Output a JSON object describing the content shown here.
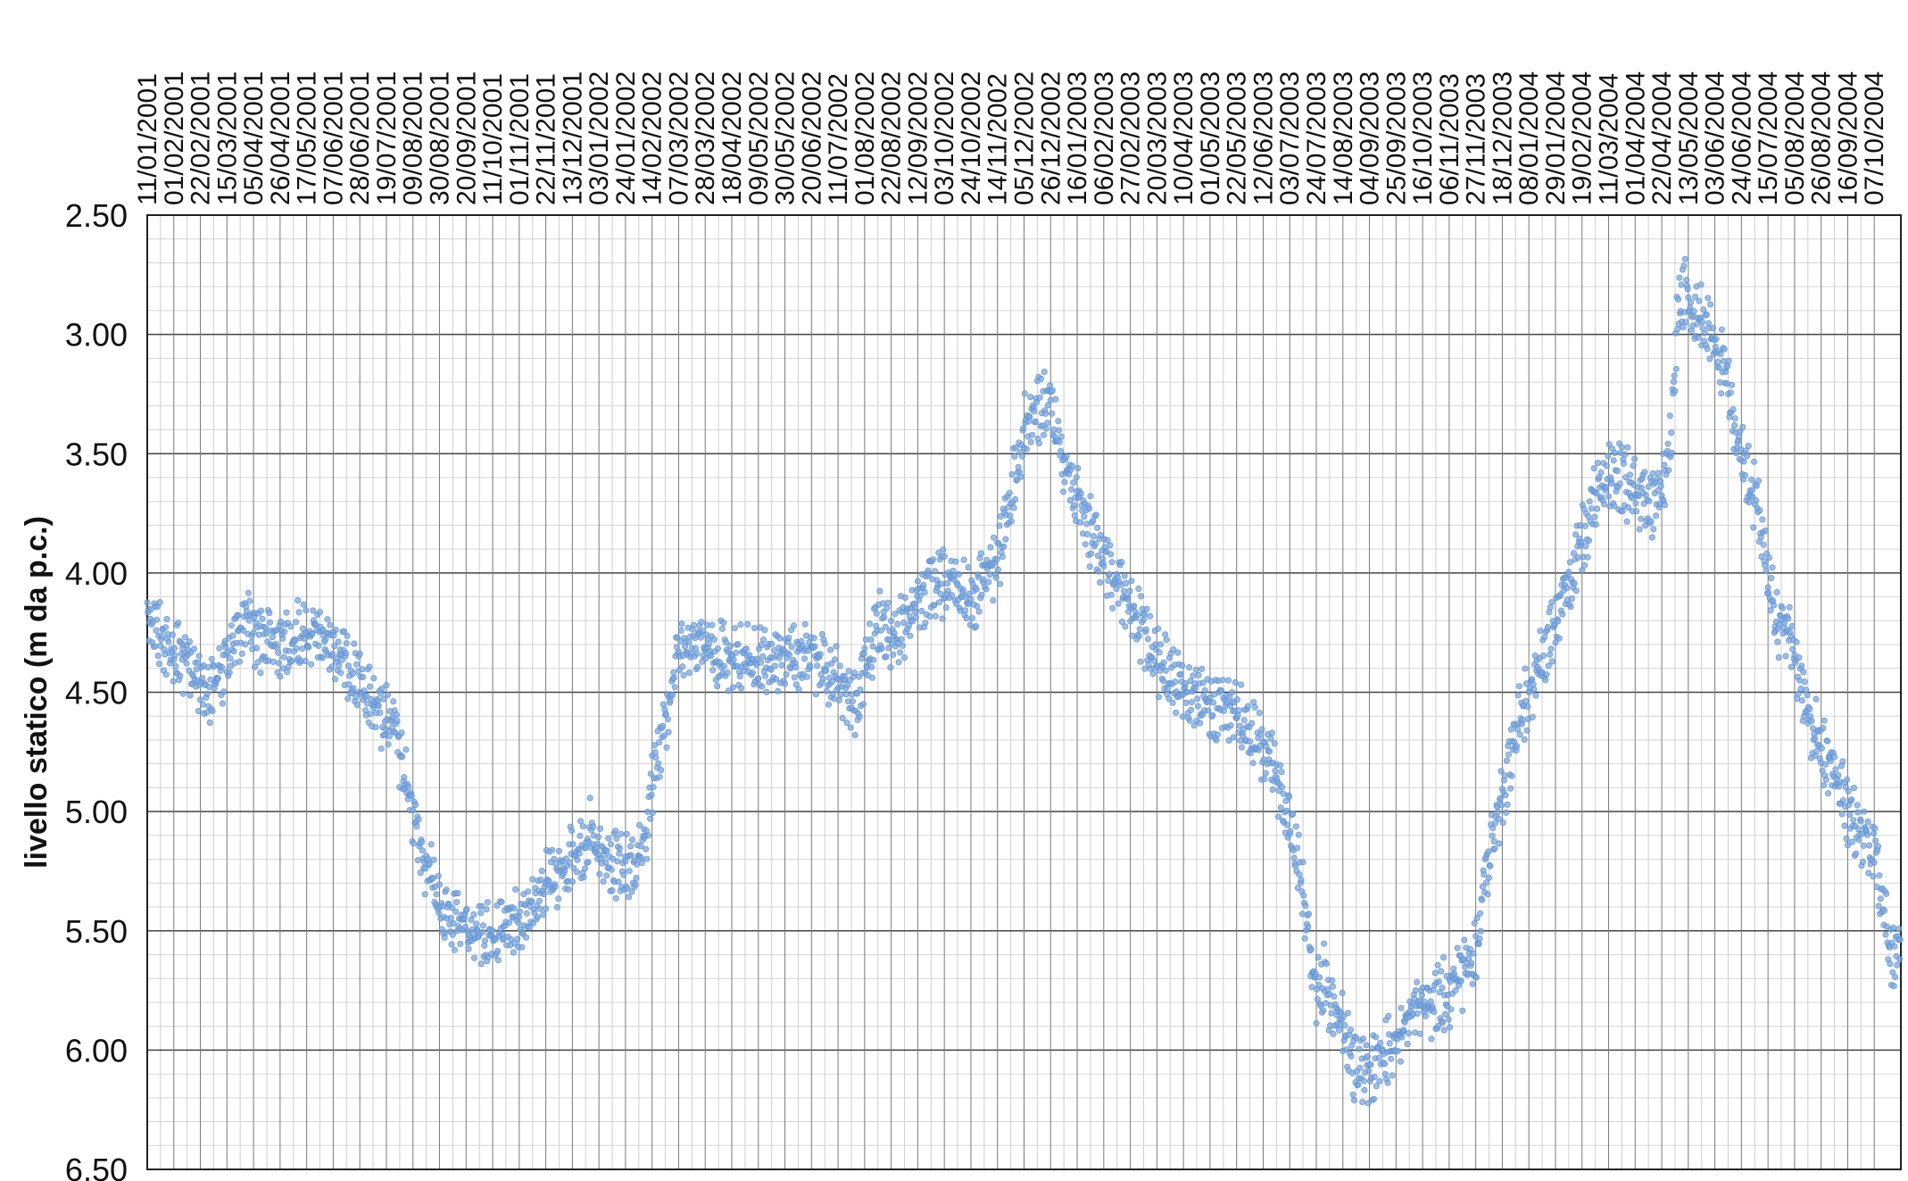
{
  "chart_data": {
    "type": "scatter",
    "title": "",
    "xlabel": "",
    "ylabel": "livello statico (m da p.c.)",
    "y_inverted": true,
    "ylim": [
      2.5,
      6.5
    ],
    "yticks": [
      "2.50",
      "3.00",
      "3.50",
      "4.00",
      "4.50",
      "5.00",
      "5.50",
      "6.00",
      "6.50"
    ],
    "grid": true,
    "legend": "none",
    "marker_color": "#7ba7de",
    "x_start": "11/01/2001",
    "x_end": "28/10/2004",
    "x_tick_labels": [
      "11/01/2001",
      "01/02/2001",
      "22/02/2001",
      "15/03/2001",
      "05/04/2001",
      "26/04/2001",
      "17/05/2001",
      "07/06/2001",
      "28/06/2001",
      "19/07/2001",
      "09/08/2001",
      "30/08/2001",
      "20/09/2001",
      "11/10/2001",
      "01/11/2001",
      "22/11/2001",
      "13/12/2001",
      "03/01/2002",
      "24/01/2002",
      "14/02/2002",
      "07/03/2002",
      "28/03/2002",
      "18/04/2002",
      "09/05/2002",
      "30/05/2002",
      "20/06/2002",
      "11/07/2002",
      "01/08/2002",
      "22/08/2002",
      "12/09/2002",
      "03/10/2002",
      "24/10/2002",
      "14/11/2002",
      "05/12/2002",
      "26/12/2002",
      "16/01/2003",
      "06/02/2003",
      "27/02/2003",
      "20/03/2003",
      "10/04/2003",
      "01/05/2003",
      "22/05/2003",
      "12/06/2003",
      "03/07/2003",
      "24/07/2003",
      "14/08/2003",
      "04/09/2003",
      "25/09/2003",
      "16/10/2003",
      "06/11/2003",
      "27/11/2003",
      "18/12/2003",
      "08/01/2004",
      "29/01/2004",
      "19/02/2004",
      "11/03/2004",
      "01/04/2004",
      "22/04/2004",
      "13/05/2004",
      "03/06/2004",
      "24/06/2004",
      "15/07/2004",
      "05/08/2004",
      "26/08/2004",
      "16/09/2004",
      "07/10/2004"
    ],
    "series": [
      {
        "name": "",
        "trend": [
          [
            "11/01/2001",
            4.15
          ],
          [
            "25/01/2001",
            4.3
          ],
          [
            "15/02/2001",
            4.4
          ],
          [
            "01/03/2001",
            4.5
          ],
          [
            "15/03/2001",
            4.35
          ],
          [
            "29/03/2001",
            4.2
          ],
          [
            "05/04/2001",
            4.25
          ],
          [
            "26/04/2001",
            4.3
          ],
          [
            "17/05/2001",
            4.25
          ],
          [
            "07/06/2001",
            4.3
          ],
          [
            "28/06/2001",
            4.45
          ],
          [
            "12/07/2001",
            4.6
          ],
          [
            "26/07/2001",
            4.65
          ],
          [
            "02/08/2001",
            4.85
          ],
          [
            "09/08/2001",
            5.0
          ],
          [
            "16/08/2001",
            5.15
          ],
          [
            "30/08/2001",
            5.4
          ],
          [
            "20/09/2001",
            5.5
          ],
          [
            "11/10/2001",
            5.52
          ],
          [
            "01/11/2001",
            5.45
          ],
          [
            "22/11/2001",
            5.3
          ],
          [
            "13/12/2001",
            5.2
          ],
          [
            "27/12/2001",
            5.1
          ],
          [
            "03/01/2002",
            5.2
          ],
          [
            "24/01/2002",
            5.25
          ],
          [
            "07/02/2002",
            5.2
          ],
          [
            "14/02/2002",
            4.9
          ],
          [
            "21/02/2002",
            4.7
          ],
          [
            "28/02/2002",
            4.55
          ],
          [
            "07/03/2002",
            4.3
          ],
          [
            "28/03/2002",
            4.32
          ],
          [
            "18/04/2002",
            4.35
          ],
          [
            "09/05/2002",
            4.38
          ],
          [
            "30/05/2002",
            4.35
          ],
          [
            "20/06/2002",
            4.35
          ],
          [
            "11/07/2002",
            4.45
          ],
          [
            "25/07/2002",
            4.55
          ],
          [
            "01/08/2002",
            4.4
          ],
          [
            "15/08/2002",
            4.2
          ],
          [
            "22/08/2002",
            4.3
          ],
          [
            "29/08/2002",
            4.25
          ],
          [
            "12/09/2002",
            4.1
          ],
          [
            "03/10/2002",
            4.05
          ],
          [
            "24/10/2002",
            4.1
          ],
          [
            "07/11/2002",
            4.0
          ],
          [
            "14/11/2002",
            3.95
          ],
          [
            "28/11/2002",
            3.6
          ],
          [
            "05/12/2002",
            3.4
          ],
          [
            "12/12/2002",
            3.3
          ],
          [
            "19/12/2002",
            3.3
          ],
          [
            "26/12/2002",
            3.3
          ],
          [
            "02/01/2003",
            3.45
          ],
          [
            "16/01/2003",
            3.7
          ],
          [
            "06/02/2003",
            3.95
          ],
          [
            "27/02/2003",
            4.15
          ],
          [
            "20/03/2003",
            4.35
          ],
          [
            "10/04/2003",
            4.5
          ],
          [
            "24/04/2003",
            4.55
          ],
          [
            "01/05/2003",
            4.55
          ],
          [
            "15/05/2003",
            4.55
          ],
          [
            "22/05/2003",
            4.6
          ],
          [
            "12/06/2003",
            4.75
          ],
          [
            "26/06/2003",
            4.9
          ],
          [
            "10/07/2003",
            5.2
          ],
          [
            "17/07/2003",
            5.5
          ],
          [
            "24/07/2003",
            5.75
          ],
          [
            "31/07/2003",
            5.7
          ],
          [
            "07/08/2003",
            5.85
          ],
          [
            "14/08/2003",
            5.9
          ],
          [
            "21/08/2003",
            6.05
          ],
          [
            "04/09/2003",
            6.1
          ],
          [
            "11/09/2003",
            6.05
          ],
          [
            "25/09/2003",
            5.95
          ],
          [
            "09/10/2003",
            5.85
          ],
          [
            "23/10/2003",
            5.8
          ],
          [
            "06/11/2003",
            5.75
          ],
          [
            "27/11/2003",
            5.6
          ],
          [
            "04/12/2003",
            5.25
          ],
          [
            "18/12/2003",
            4.95
          ],
          [
            "01/01/2004",
            4.6
          ],
          [
            "15/01/2004",
            4.4
          ],
          [
            "29/01/2004",
            4.2
          ],
          [
            "12/02/2004",
            4.0
          ],
          [
            "26/02/2004",
            3.75
          ],
          [
            "04/03/2004",
            3.6
          ],
          [
            "18/03/2004",
            3.6
          ],
          [
            "01/04/2004",
            3.65
          ],
          [
            "15/04/2004",
            3.7
          ],
          [
            "22/04/2004",
            3.65
          ],
          [
            "29/04/2004",
            3.45
          ],
          [
            "06/05/2004",
            2.8
          ],
          [
            "13/05/2004",
            2.85
          ],
          [
            "27/05/2004",
            2.95
          ],
          [
            "10/06/2004",
            3.15
          ],
          [
            "24/06/2004",
            3.5
          ],
          [
            "08/07/2004",
            3.75
          ],
          [
            "15/07/2004",
            4.0
          ],
          [
            "22/07/2004",
            4.2
          ],
          [
            "29/07/2004",
            4.2
          ],
          [
            "05/08/2004",
            4.35
          ],
          [
            "19/08/2004",
            4.65
          ],
          [
            "02/09/2004",
            4.8
          ],
          [
            "16/09/2004",
            5.0
          ],
          [
            "30/09/2004",
            5.1
          ],
          [
            "07/10/2004",
            5.15
          ],
          [
            "14/10/2004",
            5.4
          ],
          [
            "21/10/2004",
            5.6
          ],
          [
            "28/10/2004",
            5.55
          ]
        ]
      }
    ]
  }
}
